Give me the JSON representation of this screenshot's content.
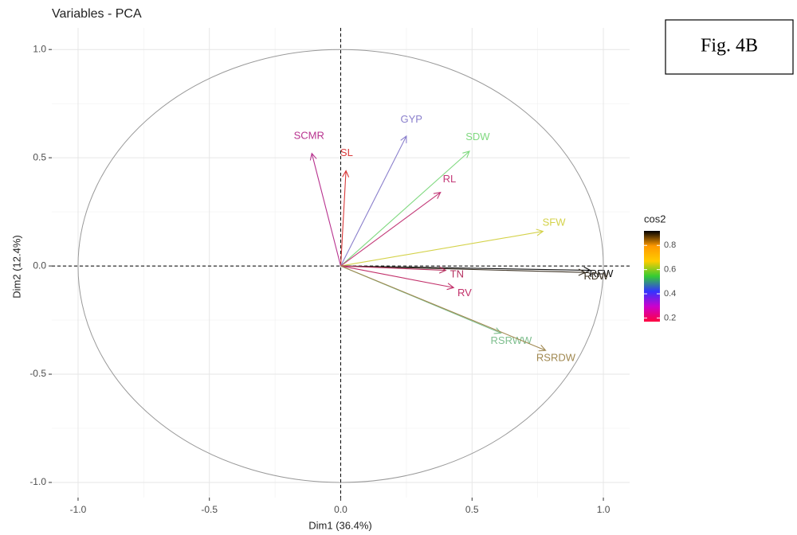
{
  "chart_data": {
    "type": "vector",
    "title": "Variables - PCA",
    "annotation": "Fig. 4B",
    "xlabel": "Dim1 (36.4%)",
    "ylabel": "Dim2 (12.4%)",
    "categories": [
      "SCMR",
      "SL",
      "GYP",
      "SDW",
      "RL",
      "SFW",
      "RFW",
      "RDW",
      "TN",
      "RV",
      "RSRWW",
      "RSRDW"
    ],
    "x": [
      -0.11,
      0.02,
      0.25,
      0.49,
      0.38,
      0.77,
      0.95,
      0.93,
      0.4,
      0.43,
      0.61,
      0.78
    ],
    "values": [
      0.52,
      0.44,
      0.6,
      0.53,
      0.34,
      0.16,
      -0.02,
      -0.03,
      -0.02,
      -0.1,
      -0.31,
      -0.39
    ],
    "colors": [
      "#b8338f",
      "#d93a3a",
      "#8a7fcc",
      "#80d980",
      "#c33a78",
      "#d4d24a",
      "#111111",
      "#3d3325",
      "#b5305f",
      "#c2306a",
      "#7fbf8f",
      "#a08850"
    ],
    "xlim": [
      -1.1,
      1.1
    ],
    "ylim": [
      -1.07,
      1.1
    ],
    "xticks": [
      {
        "value": -1,
        "label": "-1.0"
      },
      -0.5,
      {
        "value": 0,
        "label": "0.0"
      },
      0.5,
      {
        "value": 1,
        "label": "1.0"
      }
    ],
    "yticks": [
      {
        "value": -1,
        "label": "-1.0"
      },
      -0.5,
      {
        "value": 0,
        "label": "0.0"
      },
      0.5,
      {
        "value": 1,
        "label": "1.0"
      }
    ],
    "grid": true,
    "colorbar": {
      "title": "cos2",
      "lim": [
        0.17,
        0.92
      ],
      "ticks": [
        0.2,
        0.4,
        0.6,
        0.8
      ],
      "colors": [
        "#ff0040",
        "#cc00cc",
        "#3333ff",
        "#33cc33",
        "#ffcc00",
        "#ff9900",
        "#000000"
      ]
    }
  }
}
